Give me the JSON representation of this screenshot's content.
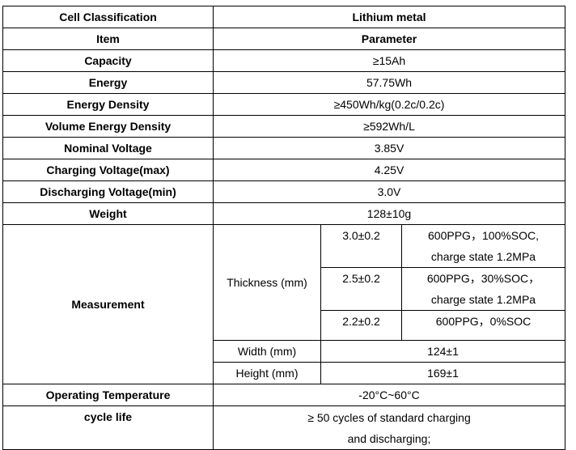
{
  "table": {
    "header_rows": [
      [
        "Cell Classification",
        "Lithium metal"
      ],
      [
        "Item",
        "Parameter"
      ]
    ],
    "rows": [
      [
        "Capacity",
        "≥15Ah"
      ],
      [
        "Energy",
        "57.75Wh"
      ],
      [
        "Energy Density",
        "≥450Wh/kg(0.2c/0.2c)"
      ],
      [
        "Volume Energy Density",
        "≥592Wh/L"
      ],
      [
        "Nominal Voltage",
        "3.85V"
      ],
      [
        "Charging Voltage(max)",
        "4.25V"
      ],
      [
        "Discharging Voltage(min)",
        "3.0V"
      ],
      [
        "Weight",
        "128±10g"
      ]
    ],
    "measurement": {
      "label": "Measurement",
      "thickness_label": "Thickness (mm)",
      "thickness": [
        {
          "value": "3.0±0.2",
          "condition": [
            "600PPG，100%SOC,",
            "charge state 1.2MPa"
          ]
        },
        {
          "value": "2.5±0.2",
          "condition": [
            "600PPG，30%SOC，",
            "charge state 1.2MPa"
          ]
        },
        {
          "value": "2.2±0.2",
          "condition": [
            "600PPG，0%SOC"
          ]
        }
      ],
      "width": [
        "Width (mm)",
        "124±1"
      ],
      "height": [
        "Height (mm)",
        "169±1"
      ]
    },
    "footer_rows": [
      [
        "Operating Temperature",
        [
          "-20°C~60°C"
        ]
      ],
      [
        "cycle life",
        [
          "≥ 50 cycles of standard charging",
          "and discharging;"
        ]
      ]
    ]
  }
}
